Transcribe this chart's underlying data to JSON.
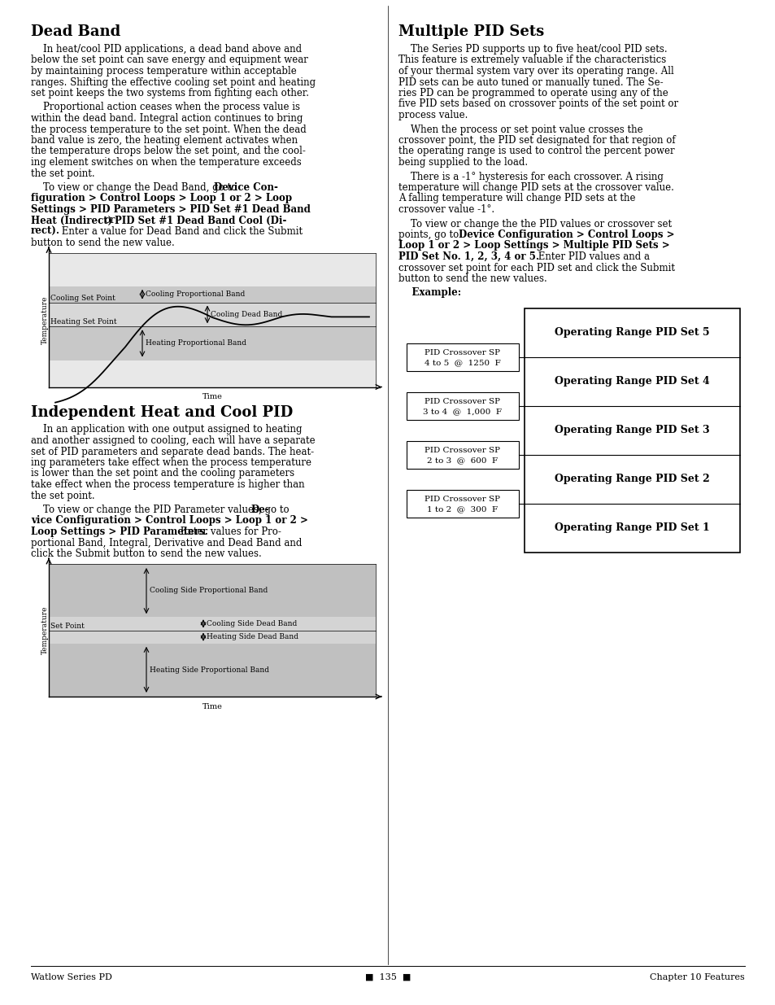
{
  "footer_left": "Watlow Series PD",
  "footer_center": "135",
  "footer_right": "Chapter 10 Features",
  "pid_sets": [
    "Operating Range PID Set 5",
    "Operating Range PID Set 4",
    "Operating Range PID Set 3",
    "Operating Range PID Set 2",
    "Operating Range PID Set 1"
  ],
  "crossovers": [
    {
      "line1": "PID Crossover SP",
      "line2": "4 to 5  @  1250  F"
    },
    {
      "line1": "PID Crossover SP",
      "line2": "3 to 4  @  1,000  F"
    },
    {
      "line1": "PID Crossover SP",
      "line2": "2 to 3  @  600  F"
    },
    {
      "line1": "PID Crossover SP",
      "line2": "1 to 2  @  300  F"
    }
  ]
}
